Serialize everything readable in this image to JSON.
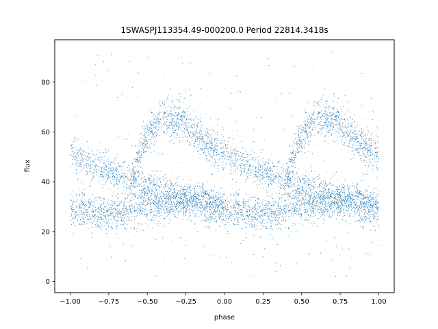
{
  "chart_data": {
    "type": "scatter",
    "title": "1SWASPJ113354.49-000200.0 Period 22814.3418s",
    "xlabel": "phase",
    "ylabel": "flux",
    "xlim": [
      -1.1,
      1.1
    ],
    "ylim": [
      -4.5,
      97
    ],
    "xticks": [
      -1.0,
      -0.75,
      -0.5,
      -0.25,
      0.0,
      0.25,
      0.5,
      0.75,
      1.0
    ],
    "xtick_labels": [
      "−1.00",
      "−0.75",
      "−0.50",
      "−0.25",
      "0.00",
      "0.25",
      "0.50",
      "0.75",
      "1.00"
    ],
    "yticks": [
      0,
      20,
      40,
      60,
      80
    ],
    "ytick_labels": [
      "0",
      "20",
      "40",
      "60",
      "80"
    ],
    "grid": false,
    "marker_color": "#1f77b4",
    "series": [
      {
        "bands": [
          {
            "description_role": "lower band",
            "phase": [
              0.0,
              0.25,
              0.5,
              0.75,
              1.0
            ],
            "flux": [
              29,
              27.5,
              30,
              32,
              29
            ],
            "width": 3.5
          },
          {
            "description_role": "descending band",
            "phase": [
              0.0,
              0.25,
              0.5,
              0.75,
              1.0
            ],
            "flux": [
              51,
              44,
              38,
              33.5,
              31
            ],
            "width": 3.2
          },
          {
            "description_role": "hump band",
            "phase": [
              0.4,
              0.5,
              0.6,
              0.7,
              0.8,
              0.9,
              1.0
            ],
            "flux": [
              42,
              58,
              66,
              65,
              60,
              55,
              51
            ],
            "width": 3.8
          }
        ]
      }
    ]
  }
}
